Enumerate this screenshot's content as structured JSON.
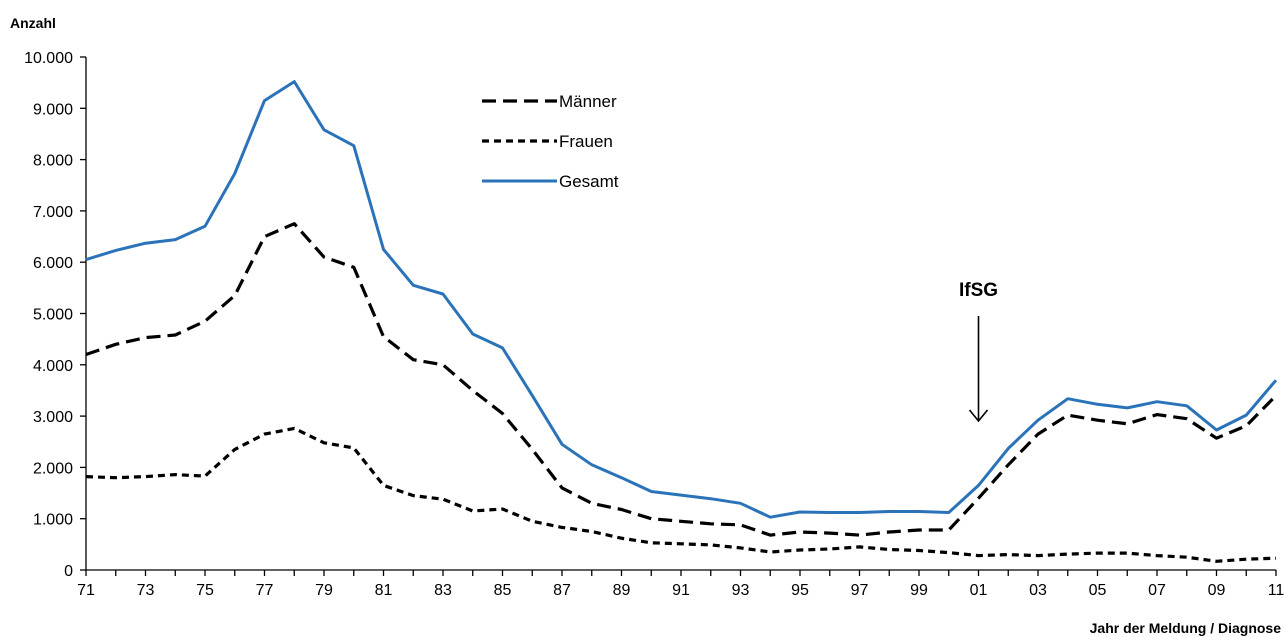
{
  "chart_data": {
    "type": "line",
    "ylabel": "Anzahl",
    "xlabel": "Jahr der Meldung / Diagnose",
    "ylim": [
      0,
      10000
    ],
    "y_ticks": [
      "0",
      "1.000",
      "2.000",
      "3.000",
      "4.000",
      "5.000",
      "6.000",
      "7.000",
      "8.000",
      "9.000",
      "10.000"
    ],
    "x_ticks": [
      "71",
      "73",
      "75",
      "77",
      "79",
      "81",
      "83",
      "85",
      "87",
      "89",
      "91",
      "93",
      "95",
      "97",
      "99",
      "01",
      "03",
      "05",
      "07",
      "09",
      "11"
    ],
    "x": [
      1971,
      1972,
      1973,
      1974,
      1975,
      1976,
      1977,
      1978,
      1979,
      1980,
      1981,
      1982,
      1983,
      1984,
      1985,
      1986,
      1987,
      1988,
      1989,
      1990,
      1991,
      1992,
      1993,
      1994,
      1995,
      1996,
      1997,
      1998,
      1999,
      2000,
      2001,
      2002,
      2003,
      2004,
      2005,
      2006,
      2007,
      2008,
      2009,
      2010,
      2011
    ],
    "series": [
      {
        "name": "Männer",
        "color": "#000000",
        "dash": "long-dash",
        "values": [
          4200,
          4400,
          4530,
          4580,
          4850,
          5350,
          6500,
          6750,
          6100,
          5900,
          4550,
          4100,
          4000,
          3500,
          3050,
          2350,
          1600,
          1300,
          1180,
          1000,
          950,
          900,
          880,
          680,
          740,
          720,
          680,
          740,
          780,
          780,
          1400,
          2050,
          2650,
          3020,
          2920,
          2850,
          3030,
          2950,
          2570,
          2810,
          3400
        ]
      },
      {
        "name": "Frauen",
        "color": "#000000",
        "dash": "short-dash",
        "values": [
          1820,
          1800,
          1820,
          1860,
          1830,
          2350,
          2650,
          2760,
          2480,
          2380,
          1650,
          1450,
          1380,
          1150,
          1190,
          950,
          830,
          750,
          620,
          530,
          510,
          490,
          430,
          350,
          390,
          410,
          450,
          400,
          380,
          340,
          280,
          300,
          280,
          310,
          330,
          330,
          280,
          250,
          170,
          210,
          230
        ]
      },
      {
        "name": "Gesamt",
        "color": "#2b73b9",
        "dash": "solid",
        "values": [
          6050,
          6230,
          6370,
          6440,
          6700,
          7730,
          9150,
          9520,
          8580,
          8270,
          6250,
          5550,
          5380,
          4600,
          4330,
          3400,
          2450,
          2050,
          1800,
          1530,
          1460,
          1390,
          1300,
          1030,
          1130,
          1120,
          1120,
          1140,
          1140,
          1120,
          1650,
          2370,
          2920,
          3340,
          3230,
          3160,
          3280,
          3200,
          2730,
          3020,
          3700
        ]
      }
    ],
    "annotation": {
      "label": "IfSG",
      "x": 2001
    }
  }
}
